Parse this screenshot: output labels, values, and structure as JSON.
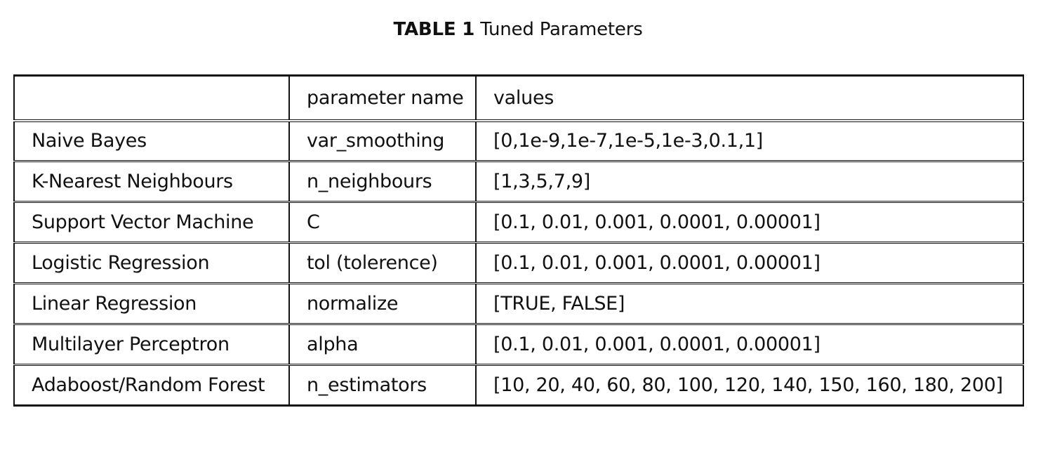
{
  "caption": {
    "label": "TABLE 1",
    "text": "Tuned Parameters"
  },
  "table": {
    "headers": [
      "",
      "parameter name",
      "values"
    ],
    "rows": [
      [
        "Naive Bayes",
        "var_smoothing",
        "[0,1e-9,1e-7,1e-5,1e-3,0.1,1]"
      ],
      [
        "K-Nearest Neighbours",
        "n_neighbours",
        "[1,3,5,7,9]"
      ],
      [
        "Support Vector Machine",
        "C",
        "[0.1, 0.01, 0.001, 0.0001, 0.00001]"
      ],
      [
        "Logistic Regression",
        "tol (tolerence)",
        "[0.1, 0.01, 0.001, 0.0001, 0.00001]"
      ],
      [
        "Linear Regression",
        "normalize",
        "[TRUE, FALSE]"
      ],
      [
        "Multilayer Perceptron",
        "alpha",
        "[0.1, 0.01, 0.001, 0.0001, 0.00001]"
      ],
      [
        "Adaboost/Random Forest",
        "n_estimators",
        "[10, 20, 40, 60, 80, 100, 120, 140, 150, 160, 180, 200]"
      ]
    ]
  }
}
